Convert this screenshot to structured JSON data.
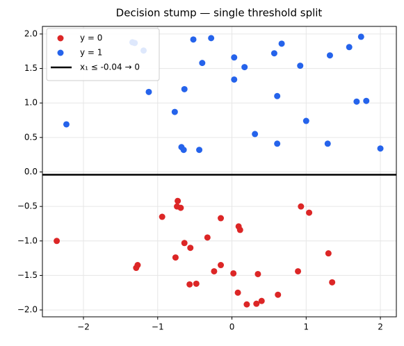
{
  "chart_data": {
    "type": "scatter",
    "title": "Decision stump — single threshold split",
    "xlim": [
      -2.553,
      2.215
    ],
    "ylim": [
      -2.1,
      2.11
    ],
    "xticks": [
      {
        "value": -2,
        "label": "−2"
      },
      {
        "value": -1,
        "label": "−1"
      },
      0,
      1,
      2
    ],
    "yticks": [
      {
        "value": -2,
        "label": "−2.0"
      },
      {
        "value": -1.5,
        "label": "−1.5"
      },
      {
        "value": -1,
        "label": "−1.0"
      },
      {
        "value": -0.5,
        "label": "−0.5"
      },
      {
        "value": 0,
        "label": "0.0"
      },
      {
        "value": 0.5,
        "label": "0.5"
      },
      {
        "value": 1,
        "label": "1.0"
      },
      {
        "value": 1.5,
        "label": "1.5"
      },
      {
        "value": 2,
        "label": "2.0"
      }
    ],
    "grid": true,
    "legend": "upper left",
    "series": [
      {
        "name": "y = 0",
        "color": "#dc2626",
        "x": [
          -2.36,
          -1.29,
          -1.27,
          -0.94,
          -0.76,
          -0.74,
          -0.73,
          -0.69,
          -0.64,
          -0.57,
          -0.56,
          -0.48,
          -0.33,
          -0.24,
          -0.15,
          -0.15,
          0.02,
          0.09,
          0.11,
          0.08,
          0.2,
          0.33,
          0.35,
          0.4,
          0.62,
          0.89,
          0.93,
          1.04,
          1.3,
          1.35
        ],
        "values": [
          -1.0,
          -1.39,
          -1.35,
          -0.65,
          -1.24,
          -0.5,
          -0.42,
          -0.52,
          -1.03,
          -1.63,
          -1.1,
          -1.62,
          -0.95,
          -1.44,
          -1.35,
          -0.67,
          -1.47,
          -0.79,
          -0.84,
          -1.75,
          -1.92,
          -1.91,
          -1.48,
          -1.87,
          -1.78,
          -1.44,
          -0.5,
          -0.59,
          -1.18,
          -1.6
        ]
      },
      {
        "name": "y = 1",
        "color": "#2563eb",
        "x": [
          -2.23,
          -1.34,
          -1.31,
          -1.19,
          -1.12,
          -0.77,
          -0.68,
          -0.65,
          -0.64,
          -0.52,
          -0.44,
          -0.4,
          -0.28,
          0.03,
          0.03,
          0.17,
          0.31,
          0.57,
          0.61,
          0.61,
          0.67,
          0.92,
          1.0,
          1.32,
          1.29,
          1.58,
          1.68,
          1.74,
          1.81,
          2.0
        ],
        "values": [
          0.69,
          1.88,
          1.87,
          1.76,
          1.16,
          0.87,
          0.36,
          0.32,
          1.2,
          1.92,
          0.32,
          1.58,
          1.94,
          1.66,
          1.34,
          1.52,
          0.55,
          1.72,
          1.1,
          0.41,
          1.86,
          1.54,
          0.74,
          1.69,
          0.41,
          1.81,
          1.02,
          1.96,
          1.03,
          0.34
        ]
      }
    ],
    "lines": [
      {
        "name": "x₁ ≤ -0.04 → 0",
        "value": -0.04,
        "color": "#000000"
      }
    ]
  }
}
